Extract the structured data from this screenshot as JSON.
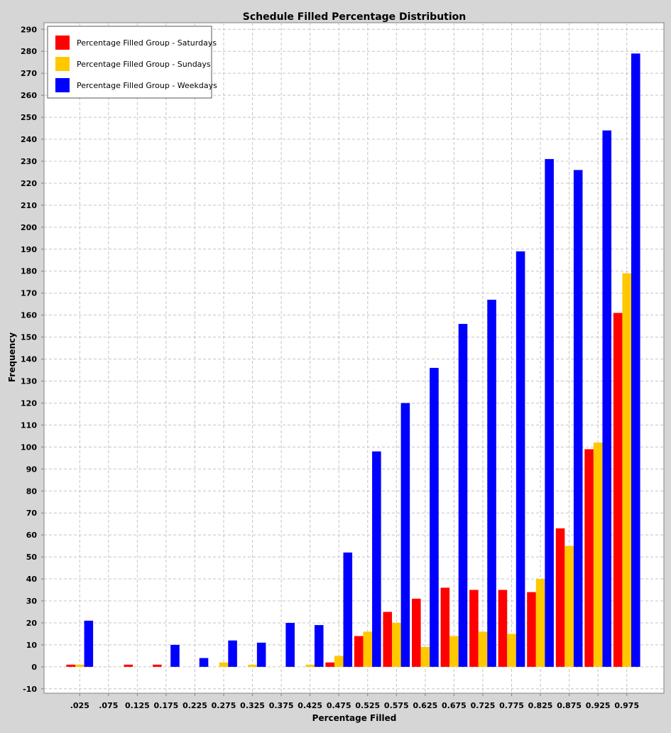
{
  "chart_data": {
    "type": "bar",
    "title": "Schedule Filled Percentage Distribution",
    "xlabel": "Percentage Filled",
    "ylabel": "Frequency",
    "categories": [
      ".025",
      ".075",
      "0.125",
      "0.175",
      "0.225",
      "0.275",
      "0.325",
      "0.375",
      "0.425",
      "0.475",
      "0.525",
      "0.575",
      "0.625",
      "0.675",
      "0.725",
      "0.775",
      "0.825",
      "0.875",
      "0.925",
      "0.975"
    ],
    "ylim": [
      -12,
      293
    ],
    "yticks": [
      -10,
      0,
      10,
      20,
      30,
      40,
      50,
      60,
      70,
      80,
      90,
      100,
      110,
      120,
      130,
      140,
      150,
      160,
      170,
      180,
      190,
      200,
      210,
      220,
      230,
      240,
      250,
      260,
      270,
      280,
      290
    ],
    "grid": true,
    "legend_position": "top-left",
    "series": [
      {
        "name": "Percentage Filled Group - Saturdays",
        "color": "#ff0000",
        "values": [
          1,
          0,
          1,
          1,
          0,
          0,
          0,
          0,
          0,
          2,
          14,
          25,
          31,
          36,
          35,
          35,
          34,
          63,
          99,
          161
        ]
      },
      {
        "name": "Percentage Filled Group - Sundays",
        "color": "#ffc800",
        "values": [
          1,
          0,
          0,
          0,
          0,
          2,
          1,
          0,
          1,
          5,
          16,
          20,
          9,
          14,
          16,
          15,
          40,
          55,
          102,
          179
        ]
      },
      {
        "name": "Percentage Filled Group - Weekdays",
        "color": "#0000ff",
        "values": [
          21,
          0,
          0,
          10,
          4,
          12,
          11,
          20,
          19,
          52,
          98,
          120,
          136,
          156,
          167,
          189,
          231,
          226,
          244,
          279
        ]
      }
    ]
  }
}
